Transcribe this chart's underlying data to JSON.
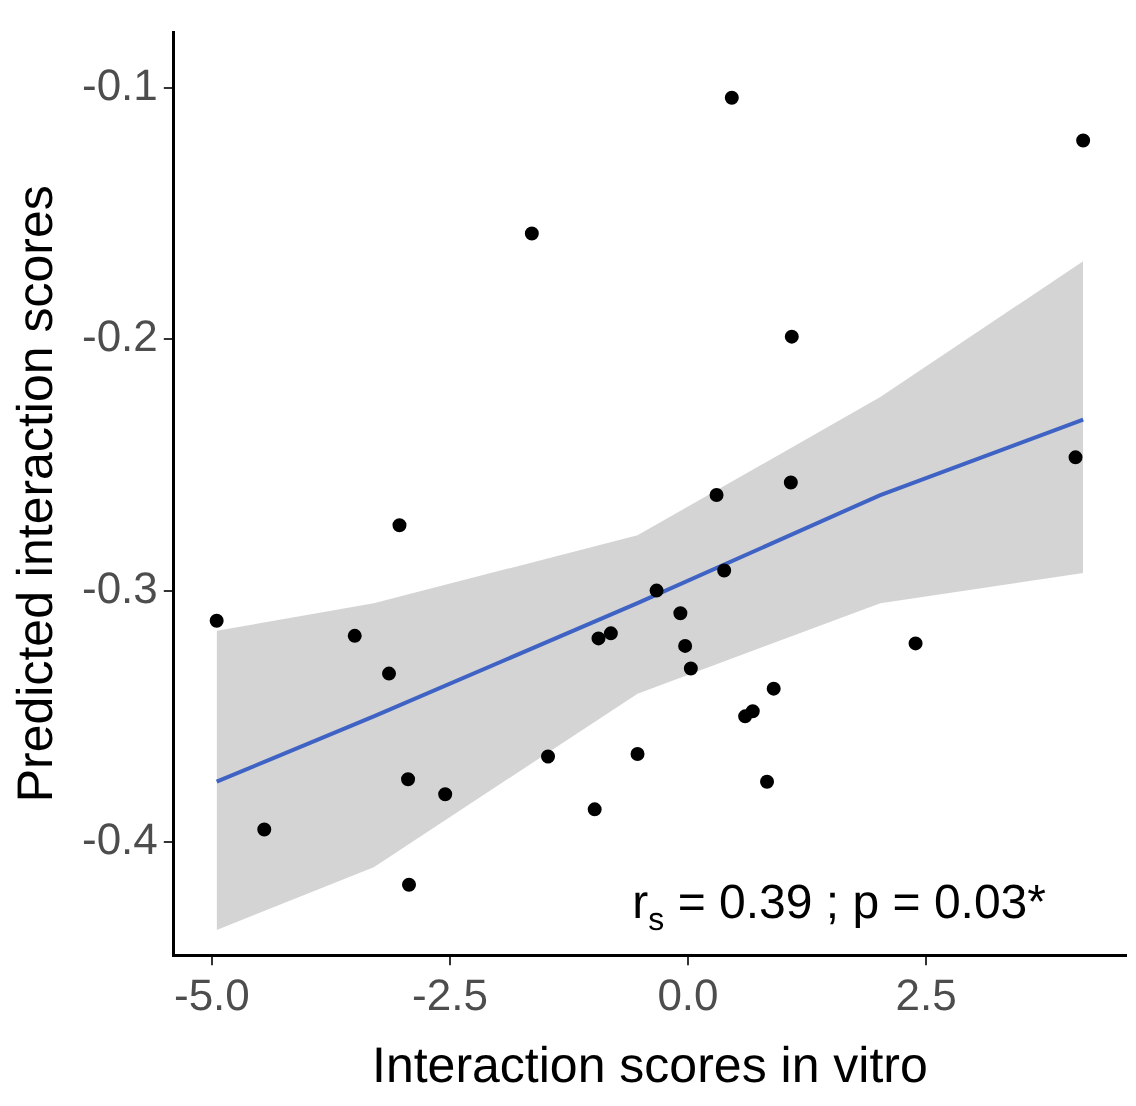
{
  "chart_data": {
    "type": "scatter",
    "xlabel": "Interaction scores in vitro",
    "ylabel": "Predicted interaction scores",
    "annotations": [
      "r$_{s}$ = 0.39 ; p = 0.03*"
    ],
    "xlim": [
      -5.4,
      4.6
    ],
    "ylim": [
      -0.445,
      -0.078
    ],
    "xticks": [
      {
        "value": -5,
        "label": "-5.0"
      },
      {
        "value": -2.5,
        "label": "-2.5"
      },
      {
        "value": 0,
        "label": "0.0"
      },
      {
        "value": 2.5,
        "label": "2.5"
      }
    ],
    "yticks": [
      -0.4,
      -0.3,
      -0.2,
      -0.1
    ],
    "grid": false,
    "legend": false,
    "series": [
      {
        "marker": "circle",
        "color": "#000000",
        "x": [
          -4.95,
          -3.03,
          -3.5,
          -3.14,
          -0.94,
          -0.81,
          -0.33,
          -1.47,
          -0.53,
          -2.94,
          -2.55,
          -4.45,
          -0.98,
          -2.93,
          0.38,
          -0.08,
          -0.03,
          0.03,
          0.9,
          0.6,
          0.68,
          0.83,
          2.39,
          0.46,
          4.15,
          1.09,
          4.07,
          0.3,
          1.08,
          -1.64
        ],
        "values": [
          -0.312,
          -0.274,
          -0.318,
          -0.333,
          -0.319,
          -0.317,
          -0.3,
          -0.366,
          -0.365,
          -0.375,
          -0.381,
          -0.395,
          -0.387,
          -0.417,
          -0.292,
          -0.309,
          -0.322,
          -0.331,
          -0.339,
          -0.35,
          -0.348,
          -0.376,
          -0.321,
          -0.104,
          -0.121,
          -0.199,
          -0.247,
          -0.262,
          -0.257,
          -0.158
        ]
      },
      {
        "type": "line",
        "marker": "none",
        "color": "#3f63c4",
        "line_style": "solid",
        "x": [
          -4.95,
          -3.3,
          -0.53,
          2.02,
          4.15
        ],
        "values": [
          -0.376,
          -0.35,
          -0.305,
          -0.262,
          -0.232
        ],
        "lower": [
          -0.435,
          -0.41,
          -0.341,
          -0.305,
          -0.293
        ],
        "upper": [
          -0.316,
          -0.305,
          -0.278,
          -0.223,
          -0.169
        ]
      }
    ]
  }
}
